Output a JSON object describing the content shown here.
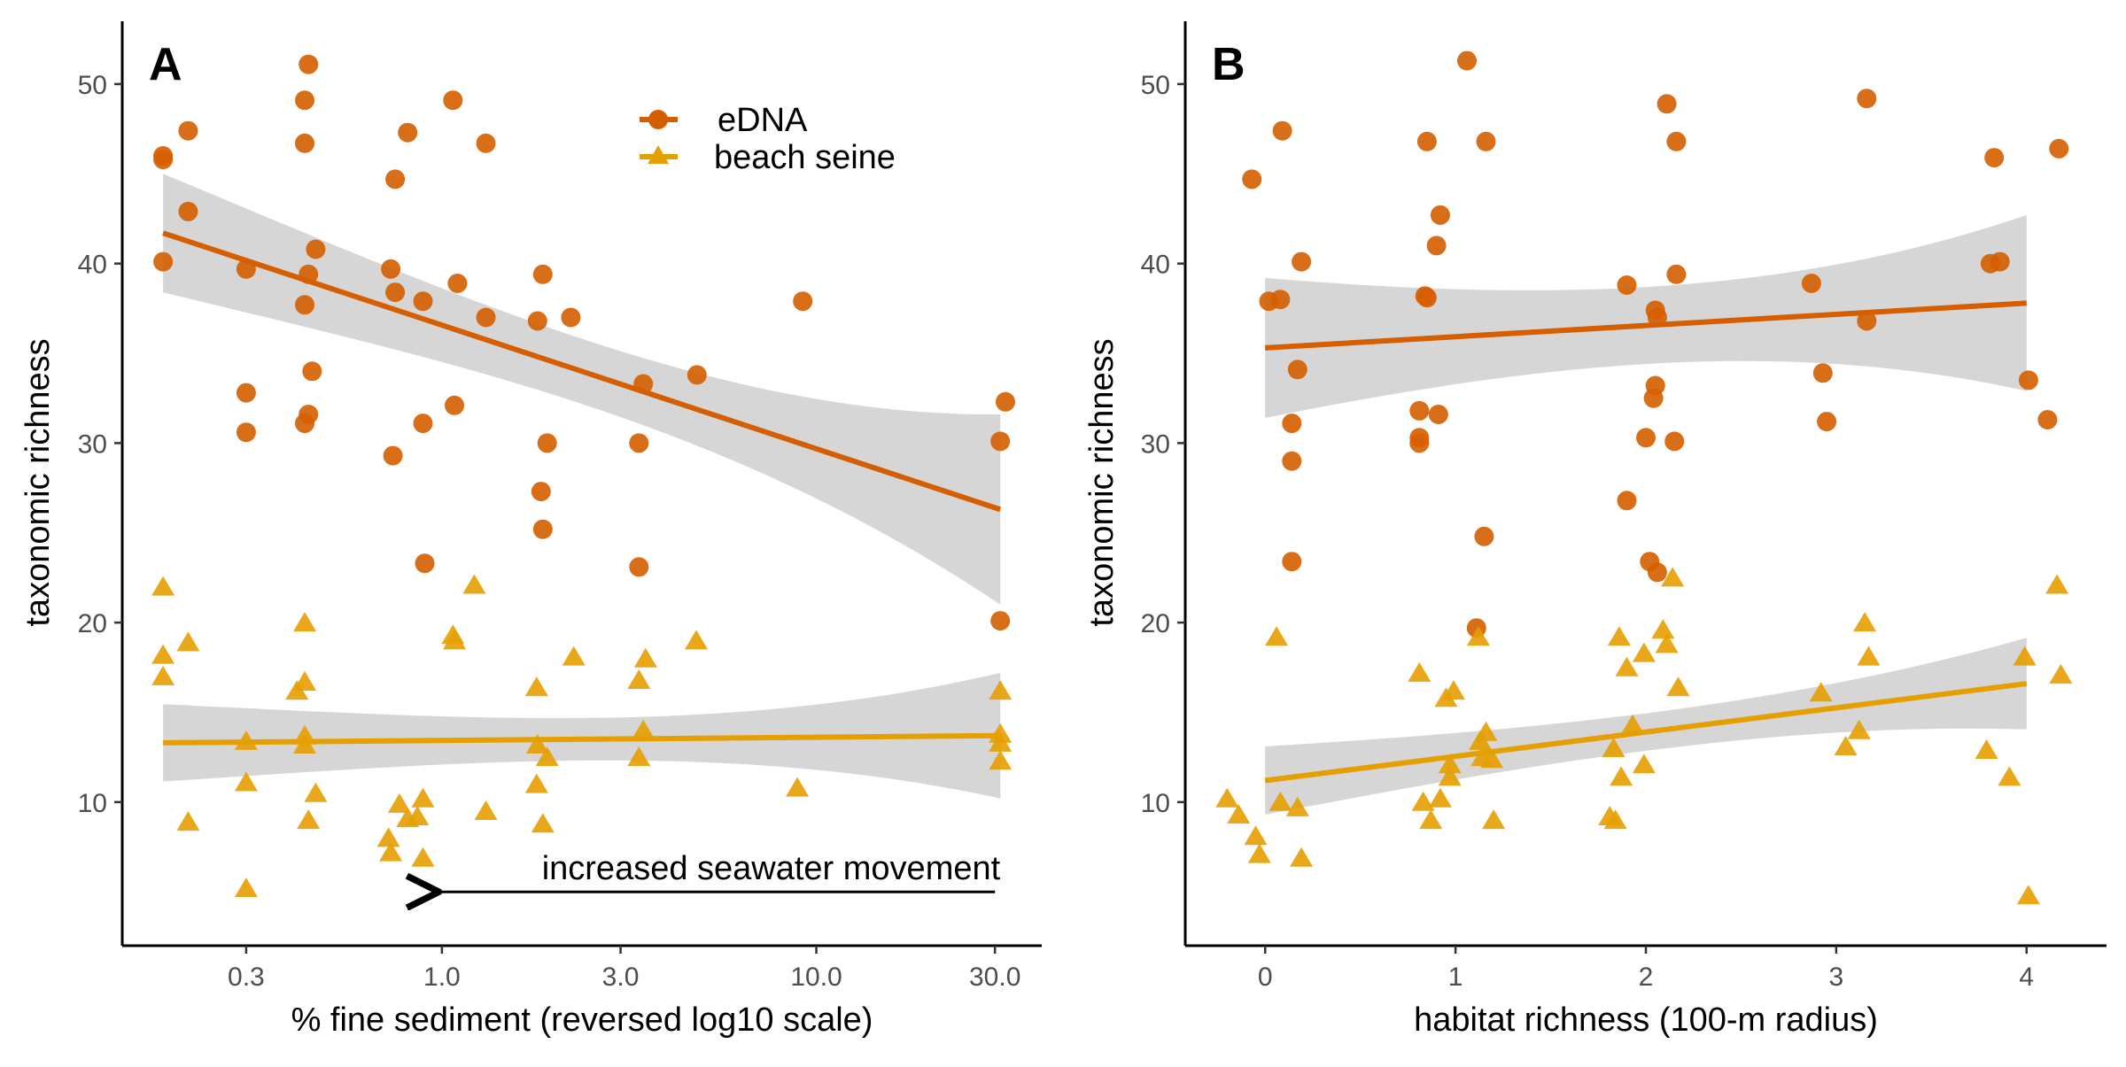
{
  "colors": {
    "edna": "#D55E00",
    "seine": "#E69F00",
    "ribbon": "#cccccc"
  },
  "legend": {
    "position": "top-center of panel A",
    "items": [
      {
        "label": "eDNA",
        "series": "edna",
        "marker": "circle"
      },
      {
        "label": "beach seine",
        "series": "seine",
        "marker": "triangle"
      }
    ]
  },
  "chart_data": [
    {
      "type": "scatter",
      "panel_label": "A",
      "xlabel": "% fine sediment (reversed log10 scale)",
      "ylabel": "taxonomic richness",
      "x_scale": "log10 (reversed)",
      "xlim": [
        0.14,
        40
      ],
      "ylim": [
        2,
        53.5
      ],
      "x_ticks": [
        0.3,
        1.0,
        3.0,
        10.0,
        30.0
      ],
      "x_tick_labels": [
        "0.3",
        "1.0",
        "3.0",
        "10.0",
        "30.0"
      ],
      "y_ticks": [
        10,
        20,
        30,
        40,
        50
      ],
      "y_tick_labels": [
        "10",
        "20",
        "30",
        "40",
        "50"
      ],
      "annotation": {
        "text": "increased seawater movement",
        "arrow_from_x": 30.0,
        "arrow_to_x": 0.96,
        "y": 5
      },
      "series": [
        {
          "key": "edna",
          "marker": "circle",
          "points": [
            [
              0.18,
              46.0
            ],
            [
              0.18,
              45.8
            ],
            [
              0.18,
              40.1
            ],
            [
              0.21,
              47.4
            ],
            [
              0.21,
              42.9
            ],
            [
              0.3,
              39.7
            ],
            [
              0.3,
              32.8
            ],
            [
              0.3,
              30.6
            ],
            [
              0.44,
              51.1
            ],
            [
              0.43,
              49.1
            ],
            [
              0.43,
              46.7
            ],
            [
              0.46,
              40.8
            ],
            [
              0.44,
              39.4
            ],
            [
              0.43,
              37.7
            ],
            [
              0.45,
              34.0
            ],
            [
              0.44,
              31.6
            ],
            [
              0.43,
              31.1
            ],
            [
              0.75,
              44.7
            ],
            [
              0.81,
              47.3
            ],
            [
              0.73,
              39.7
            ],
            [
              0.75,
              38.4
            ],
            [
              0.89,
              37.9
            ],
            [
              0.89,
              31.1
            ],
            [
              0.74,
              29.3
            ],
            [
              0.9,
              23.3
            ],
            [
              1.07,
              49.1
            ],
            [
              1.1,
              38.9
            ],
            [
              1.08,
              32.1
            ],
            [
              1.31,
              46.7
            ],
            [
              1.31,
              37.0
            ],
            [
              1.86,
              39.4
            ],
            [
              1.8,
              36.8
            ],
            [
              1.91,
              30.0
            ],
            [
              1.84,
              27.3
            ],
            [
              1.86,
              25.2
            ],
            [
              2.21,
              37.0
            ],
            [
              3.45,
              33.3
            ],
            [
              3.36,
              30.0
            ],
            [
              3.36,
              23.1
            ],
            [
              4.8,
              33.8
            ],
            [
              9.2,
              37.9
            ],
            [
              32.0,
              32.3
            ],
            [
              31.0,
              30.1
            ],
            [
              31.0,
              20.1
            ]
          ],
          "fit": {
            "x": [
              0.18,
              31.0
            ],
            "y": [
              41.7,
              26.3
            ],
            "ci_low": [
              38.4,
              21.0
            ],
            "ci_high": [
              45.0,
              31.6
            ]
          }
        },
        {
          "key": "seine",
          "marker": "triangle",
          "points": [
            [
              0.18,
              22.0
            ],
            [
              0.18,
              18.2
            ],
            [
              0.18,
              17.0
            ],
            [
              0.21,
              18.9
            ],
            [
              0.21,
              8.9
            ],
            [
              0.3,
              13.4
            ],
            [
              0.3,
              11.1
            ],
            [
              0.3,
              5.2
            ],
            [
              0.43,
              20.0
            ],
            [
              0.43,
              16.7
            ],
            [
              0.41,
              16.2
            ],
            [
              0.43,
              13.7
            ],
            [
              0.43,
              13.2
            ],
            [
              0.46,
              10.5
            ],
            [
              0.44,
              9.0
            ],
            [
              0.77,
              9.9
            ],
            [
              0.72,
              8.0
            ],
            [
              0.73,
              7.2
            ],
            [
              0.89,
              10.2
            ],
            [
              0.86,
              9.2
            ],
            [
              0.81,
              9.1
            ],
            [
              0.89,
              6.9
            ],
            [
              1.07,
              19.3
            ],
            [
              1.08,
              19.0
            ],
            [
              1.22,
              22.1
            ],
            [
              1.31,
              9.5
            ],
            [
              1.79,
              16.4
            ],
            [
              1.8,
              13.2
            ],
            [
              1.91,
              12.5
            ],
            [
              1.79,
              11.0
            ],
            [
              1.86,
              8.8
            ],
            [
              2.25,
              18.1
            ],
            [
              3.36,
              16.8
            ],
            [
              3.45,
              14.0
            ],
            [
              3.5,
              18.0
            ],
            [
              3.36,
              12.5
            ],
            [
              4.78,
              19.0
            ],
            [
              8.9,
              10.8
            ],
            [
              31.0,
              16.2
            ],
            [
              31.0,
              13.8
            ],
            [
              31.0,
              13.3
            ],
            [
              31.0,
              12.3
            ]
          ],
          "fit": {
            "x": [
              0.18,
              31.0
            ],
            "y": [
              13.3,
              13.7
            ],
            "ci_low": [
              11.2,
              10.2
            ],
            "ci_high": [
              15.5,
              17.2
            ]
          }
        }
      ]
    },
    {
      "type": "scatter",
      "panel_label": "B",
      "xlabel": "habitat richness (100-m radius)",
      "ylabel": "taxonomic richness",
      "xlim": [
        -0.42,
        4.42
      ],
      "ylim": [
        2,
        53.5
      ],
      "x_ticks": [
        0,
        1,
        2,
        3,
        4
      ],
      "x_tick_labels": [
        "0",
        "1",
        "2",
        "3",
        "4"
      ],
      "y_ticks": [
        10,
        20,
        30,
        40,
        50
      ],
      "y_tick_labels": [
        "10",
        "20",
        "30",
        "40",
        "50"
      ],
      "series": [
        {
          "key": "edna",
          "marker": "circle",
          "points": [
            [
              -0.07,
              44.7
            ],
            [
              0.02,
              37.9
            ],
            [
              0.08,
              38.0
            ],
            [
              0.09,
              47.4
            ],
            [
              0.17,
              34.1
            ],
            [
              0.14,
              31.1
            ],
            [
              0.14,
              29.0
            ],
            [
              0.19,
              40.1
            ],
            [
              0.14,
              23.4
            ],
            [
              0.85,
              46.8
            ],
            [
              0.84,
              38.2
            ],
            [
              0.85,
              38.1
            ],
            [
              0.92,
              42.7
            ],
            [
              0.9,
              41.0
            ],
            [
              0.81,
              31.8
            ],
            [
              0.81,
              30.3
            ],
            [
              0.81,
              30.0
            ],
            [
              0.91,
              31.6
            ],
            [
              1.15,
              24.8
            ],
            [
              1.06,
              51.3
            ],
            [
              1.16,
              46.8
            ],
            [
              1.11,
              19.7
            ],
            [
              1.9,
              38.8
            ],
            [
              2.05,
              37.4
            ],
            [
              2.06,
              37.0
            ],
            [
              2.16,
              39.4
            ],
            [
              2.05,
              33.2
            ],
            [
              2.04,
              32.5
            ],
            [
              2.0,
              30.3
            ],
            [
              2.15,
              30.1
            ],
            [
              1.9,
              26.8
            ],
            [
              2.02,
              23.4
            ],
            [
              2.06,
              22.8
            ],
            [
              2.11,
              48.9
            ],
            [
              2.16,
              46.8
            ],
            [
              2.87,
              38.9
            ],
            [
              2.93,
              33.9
            ],
            [
              2.95,
              31.2
            ],
            [
              3.16,
              49.2
            ],
            [
              3.16,
              36.8
            ],
            [
              3.83,
              45.9
            ],
            [
              3.86,
              40.1
            ],
            [
              3.81,
              40.0
            ],
            [
              4.01,
              33.5
            ],
            [
              4.11,
              31.3
            ],
            [
              4.17,
              46.4
            ]
          ],
          "fit": {
            "x": [
              0.0,
              4.0
            ],
            "y": [
              35.3,
              37.8
            ],
            "ci_low": [
              31.4,
              32.9
            ],
            "ci_high": [
              39.2,
              42.7
            ]
          }
        },
        {
          "key": "seine",
          "marker": "triangle",
          "points": [
            [
              -0.2,
              10.2
            ],
            [
              -0.14,
              9.3
            ],
            [
              -0.05,
              8.1
            ],
            [
              -0.03,
              7.1
            ],
            [
              0.06,
              19.2
            ],
            [
              0.08,
              10.0
            ],
            [
              0.17,
              9.7
            ],
            [
              0.19,
              6.9
            ],
            [
              0.81,
              17.2
            ],
            [
              0.83,
              10.0
            ],
            [
              0.92,
              10.2
            ],
            [
              0.97,
              12.1
            ],
            [
              0.95,
              15.8
            ],
            [
              0.99,
              16.2
            ],
            [
              0.97,
              11.4
            ],
            [
              0.87,
              9.0
            ],
            [
              1.12,
              19.2
            ],
            [
              1.13,
              13.4
            ],
            [
              1.16,
              13.9
            ],
            [
              1.14,
              12.5
            ],
            [
              1.19,
              12.4
            ],
            [
              1.2,
              9.0
            ],
            [
              1.86,
              19.2
            ],
            [
              1.9,
              17.5
            ],
            [
              1.83,
              13.0
            ],
            [
              1.93,
              14.3
            ],
            [
              1.87,
              11.4
            ],
            [
              1.81,
              9.2
            ],
            [
              1.84,
              9.0
            ],
            [
              2.09,
              19.6
            ],
            [
              2.11,
              18.8
            ],
            [
              1.99,
              18.3
            ],
            [
              1.99,
              12.1
            ],
            [
              2.14,
              22.5
            ],
            [
              2.17,
              16.4
            ],
            [
              2.92,
              16.1
            ],
            [
              3.05,
              13.1
            ],
            [
              3.15,
              20.0
            ],
            [
              3.17,
              18.1
            ],
            [
              3.12,
              14.0
            ],
            [
              3.79,
              12.9
            ],
            [
              3.91,
              11.4
            ],
            [
              3.99,
              18.1
            ],
            [
              4.16,
              22.1
            ],
            [
              4.18,
              17.1
            ],
            [
              4.01,
              4.8
            ]
          ],
          "fit": {
            "x": [
              0.0,
              4.0
            ],
            "y": [
              11.2,
              16.6
            ],
            "ci_low": [
              9.3,
              14.1
            ],
            "ci_high": [
              13.1,
              19.2
            ]
          }
        }
      ]
    }
  ]
}
